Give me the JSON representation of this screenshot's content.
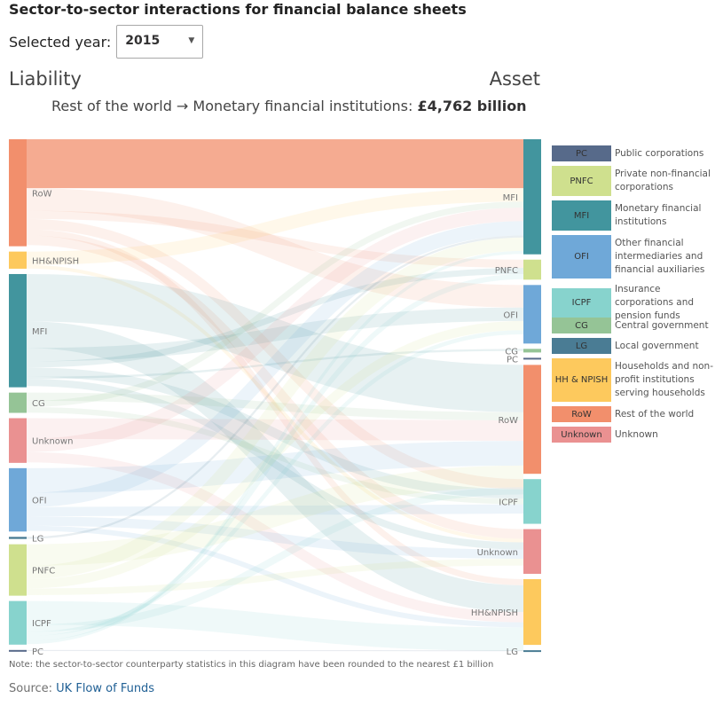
{
  "title": "Sector-to-sector interactions for financial balance sheets",
  "year_selector": {
    "label": "Selected year:",
    "value": "2015",
    "arrow": "▼"
  },
  "liability_heading": "Liability",
  "asset_heading": "Asset",
  "caption": {
    "from": "Rest of the world",
    "arrow": " → ",
    "to": "Monetary financial institutions",
    "separator": ": ",
    "value": "£4,762 billion"
  },
  "chart_data": {
    "type": "sankey",
    "unit": "£ billion",
    "highlighted_flow": {
      "source": "RoW",
      "target": "MFI",
      "value": 4762
    },
    "liability_nodes": [
      "RoW",
      "HH&NPISH",
      "MFI",
      "CG",
      "Unknown",
      "OFI",
      "LG",
      "PNFC",
      "ICPF",
      "PC"
    ],
    "asset_nodes": [
      "MFI",
      "PNFC",
      "OFI",
      "CG",
      "PC",
      "RoW",
      "ICPF",
      "Unknown",
      "HH&NPISH",
      "LG"
    ],
    "node_totals_estimated": {
      "liability": {
        "RoW": 10300,
        "HH&NPISH": 1650,
        "MFI": 10900,
        "CG": 1950,
        "Unknown": 4300,
        "OFI": 6100,
        "LG": 200,
        "PNFC": 4950,
        "ICPF": 4200,
        "PC": 100
      },
      "asset": {
        "MFI": 11200,
        "PNFC": 1950,
        "OFI": 5700,
        "CG": 350,
        "PC": 100,
        "RoW": 10600,
        "ICPF": 4350,
        "Unknown": 4350,
        "HH&NPISH": 6400,
        "LG": 150
      }
    },
    "flows_estimated": [
      {
        "source": "RoW",
        "target": "MFI",
        "value": 4762
      },
      {
        "source": "RoW",
        "target": "OFI",
        "value": 2200
      },
      {
        "source": "RoW",
        "target": "PNFC",
        "value": 800
      },
      {
        "source": "RoW",
        "target": "ICPF",
        "value": 1000
      },
      {
        "source": "RoW",
        "target": "HH&NPISH",
        "value": 600
      },
      {
        "source": "RoW",
        "target": "Unknown",
        "value": 938
      },
      {
        "source": "HH&NPISH",
        "target": "MFI",
        "value": 1300
      },
      {
        "source": "HH&NPISH",
        "target": "Unknown",
        "value": 350
      },
      {
        "source": "MFI",
        "target": "RoW",
        "value": 4600
      },
      {
        "source": "MFI",
        "target": "HH&NPISH",
        "value": 2600
      },
      {
        "source": "MFI",
        "target": "OFI",
        "value": 1300
      },
      {
        "source": "MFI",
        "target": "PNFC",
        "value": 600
      },
      {
        "source": "MFI",
        "target": "ICPF",
        "value": 900
      },
      {
        "source": "MFI",
        "target": "CG",
        "value": 200
      },
      {
        "source": "MFI",
        "target": "Unknown",
        "value": 700
      },
      {
        "source": "CG",
        "target": "RoW",
        "value": 800
      },
      {
        "source": "CG",
        "target": "MFI",
        "value": 600
      },
      {
        "source": "CG",
        "target": "ICPF",
        "value": 550
      },
      {
        "source": "Unknown",
        "target": "RoW",
        "value": 2000
      },
      {
        "source": "Unknown",
        "target": "MFI",
        "value": 1300
      },
      {
        "source": "Unknown",
        "target": "HH&NPISH",
        "value": 1000
      },
      {
        "source": "OFI",
        "target": "RoW",
        "value": 2400
      },
      {
        "source": "OFI",
        "target": "MFI",
        "value": 1400
      },
      {
        "source": "OFI",
        "target": "ICPF",
        "value": 900
      },
      {
        "source": "OFI",
        "target": "Unknown",
        "value": 900
      },
      {
        "source": "OFI",
        "target": "HH&NPISH",
        "value": 500
      },
      {
        "source": "LG",
        "target": "MFI",
        "value": 200
      },
      {
        "source": "PNFC",
        "target": "RoW",
        "value": 2100
      },
      {
        "source": "PNFC",
        "target": "MFI",
        "value": 1300
      },
      {
        "source": "PNFC",
        "target": "OFI",
        "value": 900
      },
      {
        "source": "PNFC",
        "target": "Unknown",
        "value": 650
      },
      {
        "source": "ICPF",
        "target": "HH&NPISH",
        "value": 2300
      },
      {
        "source": "ICPF",
        "target": "RoW",
        "value": 700
      },
      {
        "source": "ICPF",
        "target": "OFI",
        "value": 400
      },
      {
        "source": "ICPF",
        "target": "PNFC",
        "value": 500
      },
      {
        "source": "ICPF",
        "target": "MFI",
        "value": 300
      },
      {
        "source": "PC",
        "target": "LG",
        "value": 100
      }
    ]
  },
  "legend": [
    {
      "code": "PC",
      "label": "Public corporations",
      "color": "#576a8a"
    },
    {
      "code": "PNFC",
      "label": "Private non-financial corporations",
      "color": "#cfe08e"
    },
    {
      "code": "MFI",
      "label": "Monetary financial institutions",
      "color": "#42959e"
    },
    {
      "code": "OFI",
      "label": "Other financial intermediaries and financial auxiliaries",
      "color": "#6fa8d8"
    },
    {
      "code": "ICPF",
      "label": "Insurance corporations and pension funds",
      "color": "#87d3cd"
    },
    {
      "code": "CG",
      "label": "Central government",
      "color": "#95c496"
    },
    {
      "code": "LG",
      "label": "Local government",
      "color": "#4a7c94"
    },
    {
      "code": "HH & NPISH",
      "label": "Households and non-profit institutions serving households",
      "color": "#fdc95d"
    },
    {
      "code": "RoW",
      "label": "Rest of the world",
      "color": "#f28f6c"
    },
    {
      "code": "Unknown",
      "label": "Unknown",
      "color": "#ea9191"
    }
  ],
  "sector_colors": {
    "RoW": "#f28f6c",
    "HH&NPISH": "#fdc95d",
    "MFI": "#42959e",
    "CG": "#95c496",
    "Unknown": "#ea9191",
    "OFI": "#6fa8d8",
    "LG": "#4a7c94",
    "PNFC": "#cfe08e",
    "ICPF": "#87d3cd",
    "PC": "#576a8a"
  },
  "note": "Note: the sector-to-sector counterparty statistics in this diagram have been rounded to the nearest £1 billion",
  "source": {
    "prefix": "Source: ",
    "link_text": "UK Flow of Funds"
  }
}
